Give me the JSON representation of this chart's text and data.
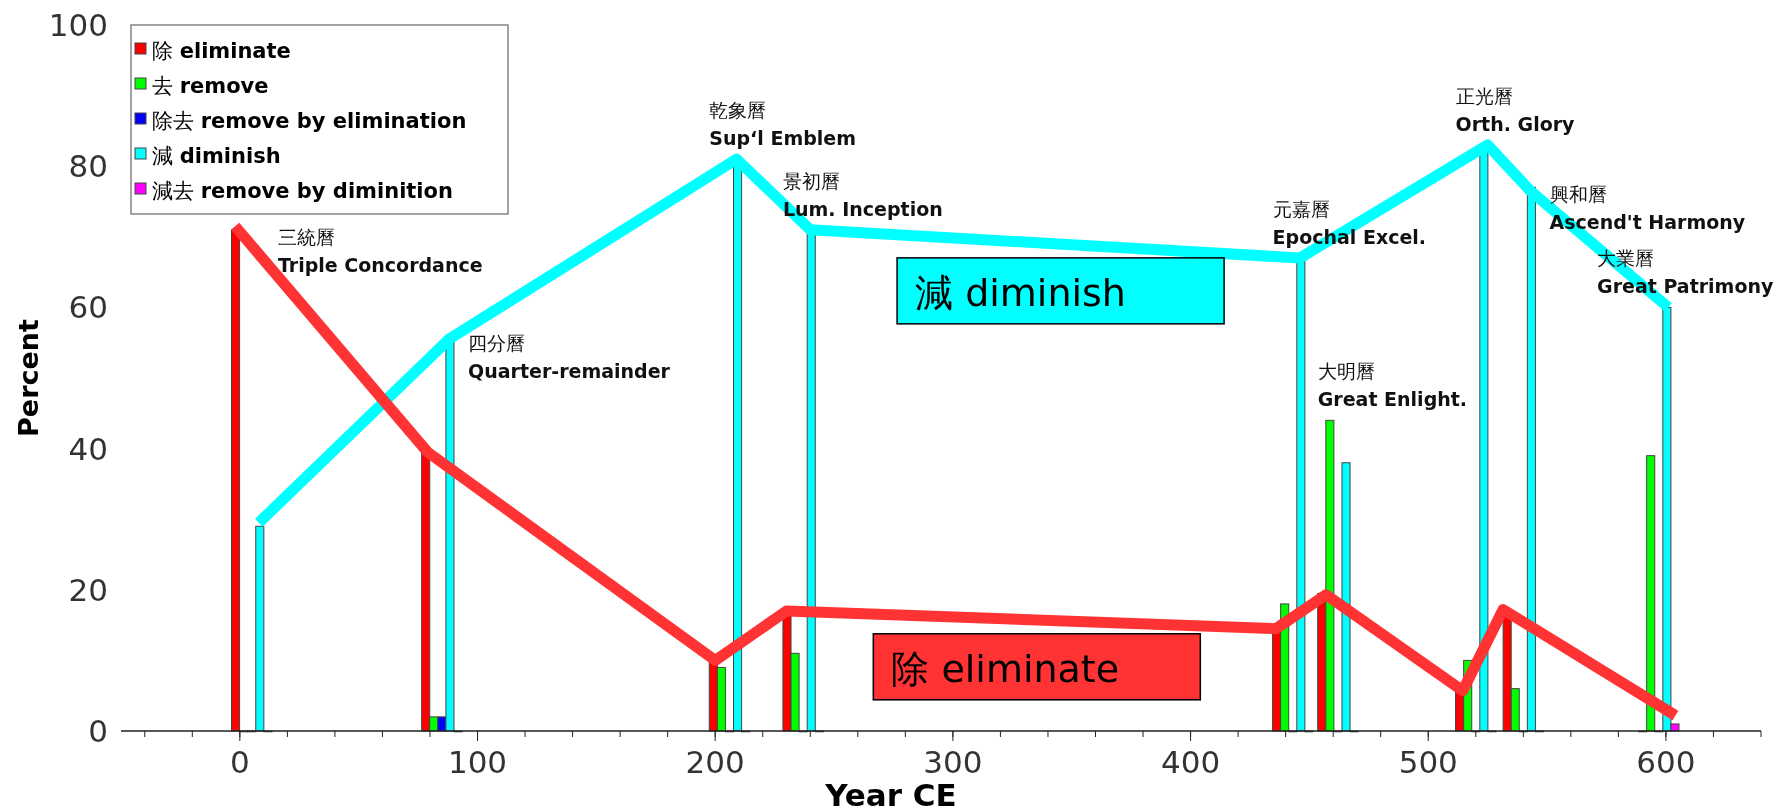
{
  "chart_data": {
    "type": "bar",
    "xlabel": "Year CE",
    "ylabel": "Percent",
    "x": [
      5,
      85,
      206,
      237,
      443,
      462,
      520,
      540,
      597
    ],
    "xlim": [
      -50,
      640
    ],
    "xticks": [
      0,
      100,
      200,
      300,
      400,
      500,
      600
    ],
    "ylim": [
      0,
      100
    ],
    "yticks": [
      0,
      20,
      40,
      60,
      80,
      100
    ],
    "legend": "top left",
    "grid": false,
    "series": [
      {
        "name": "除 eliminate",
        "color": "#ff0000",
        "values": [
          71,
          40,
          10,
          17,
          15,
          19.5,
          5.5,
          17,
          0
        ]
      },
      {
        "name": "去 remove",
        "color": "#00ff00",
        "values": [
          0,
          2,
          9,
          11,
          18,
          44,
          10,
          6,
          39
        ]
      },
      {
        "name": "除去 remove by elimination",
        "color": "#0000ff",
        "values": [
          0,
          2,
          0,
          0,
          0,
          0,
          0,
          0,
          0
        ]
      },
      {
        "name": "減 diminish",
        "color": "#00ffff",
        "values": [
          29,
          56,
          81,
          71,
          67,
          38,
          83,
          77,
          60
        ]
      },
      {
        "name": "減去 remove by diminition",
        "color": "#ff00ff",
        "values": [
          0,
          0,
          0,
          0,
          0,
          0,
          0,
          0,
          1
        ]
      },
      {
        "type": "line",
        "name": "減 diminish",
        "color": "#00ffff",
        "x": [
          8,
          88,
          209,
          240,
          446,
          525,
          543,
          601
        ],
        "values": [
          29.5,
          55.5,
          81,
          71,
          67,
          83,
          76.5,
          60
        ]
      },
      {
        "type": "line",
        "name": "除 eliminate",
        "color": "#ff3333",
        "x": [
          -2,
          79,
          200,
          230,
          436,
          457,
          514.5,
          531.5,
          604
        ],
        "values": [
          71.5,
          39.5,
          10,
          17,
          14.5,
          19.3,
          5.7,
          17.2,
          2.2
        ]
      }
    ],
    "annotations": [
      "三統曆\nTriple Concordance",
      "四分曆\nQuarter-remainder",
      "乾象曆\nSup‘l Emblem",
      "景初曆\nLum. Inception",
      "元嘉曆\nEpochal Excel.",
      "大明曆\nGreat Enlight.",
      "正光曆\nOrth. Glory",
      "興和曆\nAscend't Harmony",
      "大業曆\nGreat Patrimony"
    ]
  }
}
